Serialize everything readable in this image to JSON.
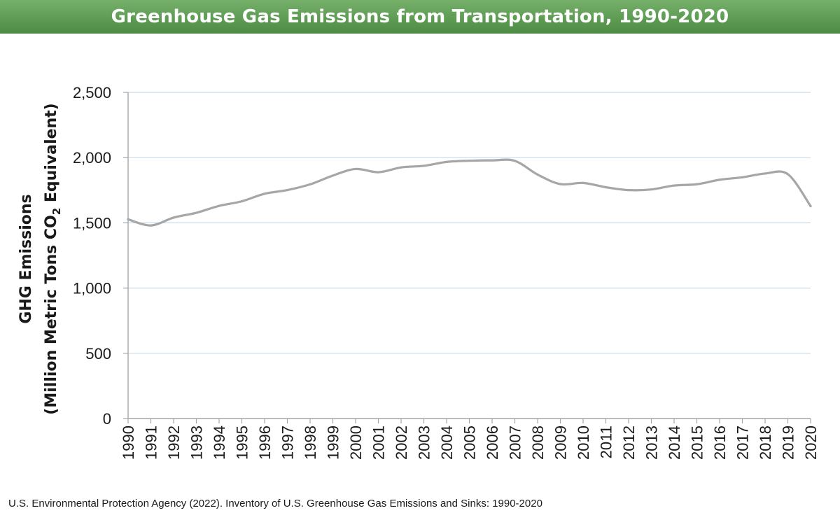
{
  "header": {
    "title": "Greenhouse Gas Emissions from Transportation, 1990-2020"
  },
  "footer": {
    "source": "U.S. Environmental Protection Agency (2022). Inventory of U.S. Greenhouse Gas Emissions and Sinks: 1990-2020"
  },
  "colors": {
    "title_bar": "#5c9a52",
    "line": "#a6a6a6",
    "gridline": "#c6dcec",
    "axis": "#a6a6a6"
  },
  "chart_data": {
    "type": "line",
    "title": "Greenhouse Gas Emissions from Transportation, 1990-2020",
    "ylabel_line1": "GHG Emissions",
    "ylabel_line2_prefix": "(Million Metric Tons CO",
    "ylabel_line2_subscript": "2",
    "ylabel_line2_suffix": " Equivalent)",
    "xlabel": "",
    "ylim": [
      0,
      2500
    ],
    "yticks": [
      0,
      500,
      1000,
      1500,
      2000,
      2500
    ],
    "ytick_labels": [
      "0",
      "500",
      "1,000",
      "1,500",
      "2,000",
      "2,500"
    ],
    "grid": true,
    "legend": "none",
    "x": [
      "1990",
      "1991",
      "1992",
      "1993",
      "1994",
      "1995",
      "1996",
      "1997",
      "1998",
      "1999",
      "2000",
      "2001",
      "2002",
      "2003",
      "2004",
      "2005",
      "2006",
      "2007",
      "2008",
      "2009",
      "2010",
      "2011",
      "2012",
      "2013",
      "2014",
      "2015",
      "2016",
      "2017",
      "2018",
      "2019",
      "2020"
    ],
    "series": [
      {
        "values": [
          1527,
          1480,
          1540,
          1577,
          1630,
          1665,
          1723,
          1751,
          1795,
          1862,
          1913,
          1888,
          1925,
          1937,
          1967,
          1976,
          1979,
          1975,
          1870,
          1797,
          1806,
          1773,
          1751,
          1756,
          1786,
          1796,
          1830,
          1849,
          1878,
          1873,
          1628
        ]
      }
    ]
  }
}
